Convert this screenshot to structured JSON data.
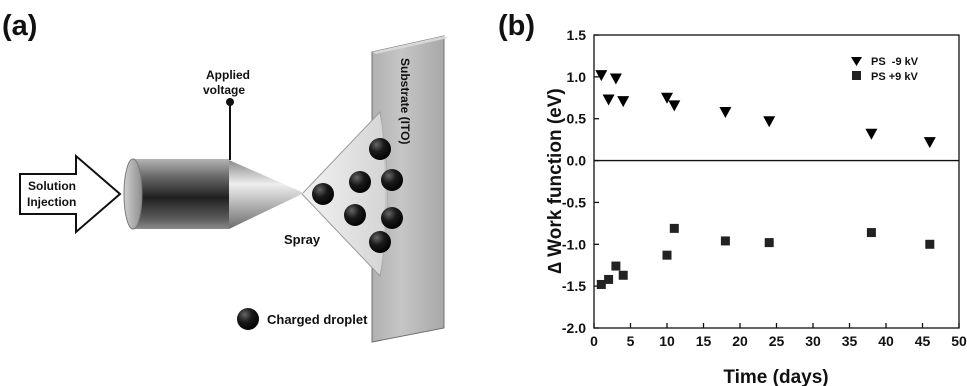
{
  "figure": {
    "panel_a_label": "(a)",
    "panel_b_label": "(b)"
  },
  "schematic": {
    "applied_voltage_line1": "Applied",
    "applied_voltage_line2": "voltage",
    "solution_line1": "Solution",
    "solution_line2": "Injection",
    "substrate_label": "Substrate (ITO)",
    "spray_label": "Spray",
    "droplet_label": "Charged droplet"
  },
  "chart_data": {
    "type": "scatter",
    "xlabel": "Time (days)",
    "ylabel": "∆ Work function (eV)",
    "xlim": [
      0,
      50
    ],
    "ylim": [
      -2.0,
      1.5
    ],
    "xticks": [
      0,
      5,
      10,
      15,
      20,
      25,
      30,
      35,
      40,
      45,
      50
    ],
    "yticks": [
      1.5,
      1.0,
      0.5,
      0.0,
      -0.5,
      -1.0,
      -1.5,
      -2.0
    ],
    "ytick_labels": [
      "1.5",
      "1.0",
      "0.5",
      "0.0",
      "-0.5",
      "-1.0",
      "-1.5",
      "-2.0"
    ],
    "zero_line": true,
    "grid": false,
    "legend_position": "top-right",
    "series": [
      {
        "name": "PS  -9 kV",
        "marker": "triangle-down",
        "color": "#000000",
        "x": [
          1,
          2,
          3,
          4,
          10,
          11,
          18,
          24,
          38,
          46
        ],
        "y": [
          1.02,
          0.73,
          0.98,
          0.71,
          0.75,
          0.66,
          0.58,
          0.47,
          0.32,
          0.22
        ]
      },
      {
        "name": "PS +9 kV",
        "marker": "square",
        "color": "#222222",
        "x": [
          1,
          2,
          3,
          4,
          10,
          11,
          18,
          24,
          38,
          46
        ],
        "y": [
          -1.48,
          -1.42,
          -1.26,
          -1.37,
          -1.13,
          -0.81,
          -0.96,
          -0.98,
          -0.86,
          -1.0
        ]
      }
    ]
  }
}
